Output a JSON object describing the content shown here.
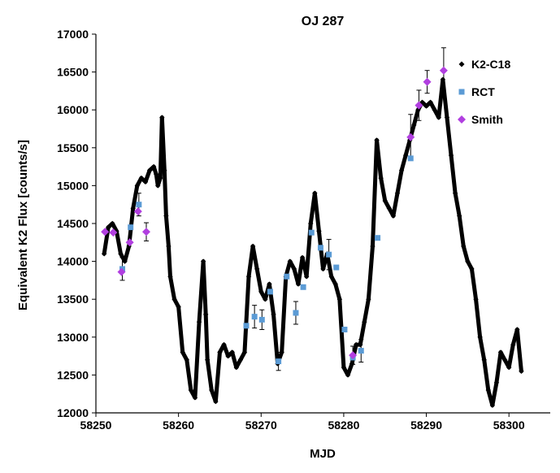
{
  "chart_data": {
    "type": "scatter",
    "title": "OJ 287",
    "xlabel": "MJD",
    "ylabel": "Equivalent K2 Flux [counts/s]",
    "xlim": [
      58250,
      58305
    ],
    "ylim": [
      12000,
      17000
    ],
    "x_ticks": [
      58250,
      58260,
      58270,
      58280,
      58290,
      58300
    ],
    "y_ticks": [
      12000,
      12500,
      13000,
      13500,
      14000,
      14500,
      15000,
      15500,
      16000,
      16500,
      17000
    ],
    "grid": false,
    "legend_position": "top-right",
    "series": [
      {
        "name": "K2-C18",
        "marker": "diamond",
        "color": "#000000",
        "x": [
          58251.0,
          58251.5,
          58252.0,
          58252.5,
          58253.0,
          58253.5,
          58254.0,
          58254.5,
          58255.0,
          58255.5,
          58256.0,
          58256.5,
          58257.0,
          58257.3,
          58257.5,
          58257.8,
          58258.0,
          58258.3,
          58258.5,
          58258.8,
          58259.0,
          58259.5,
          58260.0,
          58260.5,
          58261.0,
          58261.5,
          58262.0,
          58262.5,
          58263.0,
          58263.3,
          58263.5,
          58264.0,
          58264.5,
          58265.0,
          58265.5,
          58266.0,
          58266.5,
          58267.0,
          58267.5,
          58268.0,
          58268.5,
          58269.0,
          58269.5,
          58270.0,
          58270.5,
          58271.0,
          58271.5,
          58272.0,
          58272.5,
          58273.0,
          58273.5,
          58274.0,
          58274.5,
          58275.0,
          58275.5,
          58276.0,
          58276.5,
          58277.0,
          58277.5,
          58278.0,
          58278.5,
          58279.0,
          58279.5,
          58280.0,
          58280.5,
          58281.0,
          58281.5,
          58282.0,
          58282.5,
          58283.0,
          58283.5,
          58284.0,
          58284.5,
          58285.0,
          58285.5,
          58286.0,
          58286.5,
          58287.0,
          58287.5,
          58288.0,
          58288.5,
          58289.0,
          58289.5,
          58290.0,
          58290.5,
          58291.0,
          58291.5,
          58292.0,
          58292.5,
          58293.0,
          58293.5,
          58294.0,
          58294.5,
          58295.0,
          58295.5,
          58296.0,
          58296.5,
          58297.0,
          58297.5,
          58298.0,
          58298.5,
          58299.0,
          58299.5,
          58300.0,
          58300.5,
          58301.0,
          58301.5
        ],
        "y": [
          14100,
          14450,
          14500,
          14400,
          14100,
          14000,
          14200,
          14700,
          15000,
          15100,
          15050,
          15200,
          15250,
          15150,
          15000,
          15100,
          15900,
          15200,
          14600,
          14200,
          13800,
          13500,
          13400,
          12800,
          12700,
          12300,
          12200,
          13200,
          14000,
          13300,
          12700,
          12300,
          12150,
          12800,
          12900,
          12750,
          12800,
          12600,
          12700,
          12800,
          13800,
          14200,
          13900,
          13600,
          13500,
          13700,
          13300,
          12650,
          12800,
          13800,
          14000,
          13900,
          13700,
          14050,
          13800,
          14500,
          14900,
          14400,
          13900,
          14100,
          13800,
          13700,
          13500,
          12600,
          12500,
          12650,
          12900,
          12900,
          13200,
          13500,
          14200,
          15600,
          15100,
          14800,
          14700,
          14600,
          14900,
          15200,
          15400,
          15600,
          15800,
          16000,
          16100,
          16050,
          16100,
          16000,
          15900,
          16400,
          15900,
          15400,
          14900,
          14600,
          14200,
          14000,
          13900,
          13500,
          13000,
          12700,
          12300,
          12100,
          12400,
          12800,
          12700,
          12600,
          12900,
          13100,
          12550
        ]
      },
      {
        "name": "RCT",
        "marker": "square",
        "color": "#5b9bd5",
        "x": [
          58253.2,
          58254.2,
          58255.2,
          58268.2,
          58269.2,
          58270.1,
          58271.1,
          58272.1,
          58273.1,
          58274.2,
          58275.1,
          58276.1,
          58277.2,
          58278.2,
          58279.1,
          58280.1,
          58281.1,
          58282.1,
          58284.1,
          58288.1
        ],
        "y": [
          13900,
          14450,
          14750,
          13150,
          13270,
          13230,
          13600,
          12680,
          13800,
          13320,
          13660,
          14380,
          14180,
          14090,
          13920,
          13100,
          12730,
          12820,
          14310,
          15360
        ]
      },
      {
        "name": "Smith",
        "marker": "diamond",
        "color": "#b13fe0",
        "x": [
          58251.1,
          58252.1,
          58253.1,
          58254.1,
          58255.1,
          58256.1,
          58281.1,
          58288.1,
          58289.1,
          58290.1,
          58292.1
        ],
        "y": [
          14390,
          14380,
          13860,
          14250,
          14660,
          14390,
          12760,
          15640,
          16060,
          16370,
          16520
        ]
      }
    ],
    "error_bars": [
      {
        "x": 58253.2,
        "y": 13900,
        "err": 150
      },
      {
        "x": 58255.2,
        "y": 14750,
        "err": 150
      },
      {
        "x": 58256.1,
        "y": 14390,
        "err": 120
      },
      {
        "x": 58269.2,
        "y": 13270,
        "err": 150
      },
      {
        "x": 58270.1,
        "y": 13230,
        "err": 130
      },
      {
        "x": 58272.1,
        "y": 12680,
        "err": 120
      },
      {
        "x": 58274.2,
        "y": 13320,
        "err": 150
      },
      {
        "x": 58278.2,
        "y": 14090,
        "err": 200
      },
      {
        "x": 58281.1,
        "y": 12760,
        "err": 120
      },
      {
        "x": 58282.1,
        "y": 12820,
        "err": 150
      },
      {
        "x": 58288.1,
        "y": 15640,
        "err": 300
      },
      {
        "x": 58289.1,
        "y": 16060,
        "err": 200
      },
      {
        "x": 58290.1,
        "y": 16370,
        "err": 150
      },
      {
        "x": 58292.1,
        "y": 16520,
        "err": 300
      }
    ]
  }
}
